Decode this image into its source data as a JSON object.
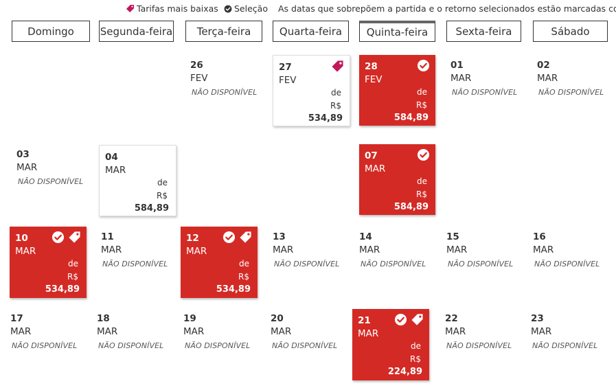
{
  "legend": {
    "lowest_fares": "Tarifas mais baixas",
    "selection": "Seleção",
    "overlap_note": "As datas que sobrepõem a partida e o retorno selecionados estão marcadas com"
  },
  "weekdays": [
    "Domingo",
    "Segunda-feira",
    "Terça-feira",
    "Quarta-feira",
    "Quinta-feira",
    "Sexta-feira",
    "Sábado"
  ],
  "active_weekday": "Quinta-feira",
  "labels": {
    "unavailable": "NÃO DISPONÍVEL",
    "from": "de",
    "currency": "R$"
  },
  "colors": {
    "selected_bg": "#d42a25",
    "lowest_fare_tag": "#c2185b"
  },
  "calendar": {
    "d26": {
      "day": "26",
      "month": "FEV"
    },
    "d27": {
      "day": "27",
      "month": "FEV",
      "price": "534,89"
    },
    "d28": {
      "day": "28",
      "month": "FEV",
      "price": "584,89"
    },
    "d01": {
      "day": "01",
      "month": "MAR"
    },
    "d02": {
      "day": "02",
      "month": "MAR"
    },
    "d03": {
      "day": "03",
      "month": "MAR"
    },
    "d04": {
      "day": "04",
      "month": "MAR",
      "price": "584,89"
    },
    "d07": {
      "day": "07",
      "month": "MAR",
      "price": "584,89"
    },
    "d10": {
      "day": "10",
      "month": "MAR",
      "price": "534,89"
    },
    "d11": {
      "day": "11",
      "month": "MAR"
    },
    "d12": {
      "day": "12",
      "month": "MAR",
      "price": "534,89"
    },
    "d13": {
      "day": "13",
      "month": "MAR"
    },
    "d14": {
      "day": "14",
      "month": "MAR"
    },
    "d15": {
      "day": "15",
      "month": "MAR"
    },
    "d16": {
      "day": "16",
      "month": "MAR"
    },
    "d17": {
      "day": "17",
      "month": "MAR"
    },
    "d18": {
      "day": "18",
      "month": "MAR"
    },
    "d19": {
      "day": "19",
      "month": "MAR"
    },
    "d20": {
      "day": "20",
      "month": "MAR"
    },
    "d21": {
      "day": "21",
      "month": "MAR",
      "price": "224,89"
    },
    "d22": {
      "day": "22",
      "month": "MAR"
    },
    "d23": {
      "day": "23",
      "month": "MAR"
    }
  }
}
